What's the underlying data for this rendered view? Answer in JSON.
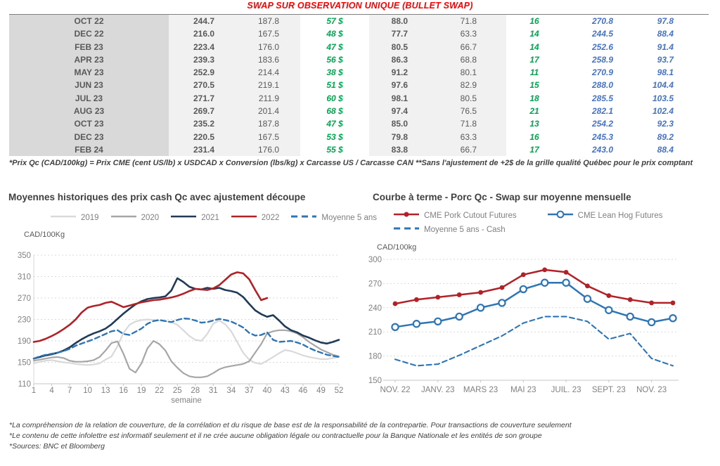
{
  "page": {
    "title": "SWAP SUR OBSERVATION UNIQUE (BULLET SWAP)",
    "table_footnote": "*Prix Qc (CAD/100kg) = Prix CME (cent US/lb) x USDCAD x Conversion (lbs/kg) x Carcasse US / Carcasse CAN **Sans l'ajustement de +2$ de la grille qualité Québec pour le prix comptant",
    "footnotes": [
      "*La compréhension de la relation de couverture, de la corrélation et du risque de base est de la responsabilité de la contrepartie. Pour transactions de couverture seulement",
      "*Le contenu de cette infolettre est informatif seulement et il ne crée aucune obligation légale ou contractuelle pour la Banque Nationale et les entités de son groupe",
      "*Sources: BNC et Bloomberg"
    ]
  },
  "colors": {
    "title_red": "#ff0000",
    "table_green": "#00a550",
    "table_blue": "#4472c4",
    "gray_2019": "#d9d9d9",
    "gray_2020": "#a6a6a6",
    "navy_2021": "#1f3b57",
    "red_2022": "#b02228",
    "blue_avg": "#2e75b6"
  },
  "table": {
    "rows": [
      [
        "OCT 22",
        "244.7",
        "187.8",
        "57 $",
        "88.0",
        "71.8",
        "16",
        "270.8",
        "97.8"
      ],
      [
        "DEC 22",
        "216.0",
        "167.5",
        "48 $",
        "77.7",
        "63.3",
        "14",
        "244.5",
        "88.4"
      ],
      [
        "FEB 23",
        "223.4",
        "176.0",
        "47 $",
        "80.5",
        "66.7",
        "14",
        "252.6",
        "91.4"
      ],
      [
        "APR 23",
        "239.3",
        "183.6",
        "56 $",
        "86.3",
        "68.8",
        "17",
        "258.9",
        "93.7"
      ],
      [
        "MAY 23",
        "252.9",
        "214.4",
        "38 $",
        "91.2",
        "80.1",
        "11",
        "270.9",
        "98.1"
      ],
      [
        "JUN 23",
        "270.5",
        "219.1",
        "51 $",
        "97.6",
        "82.9",
        "15",
        "288.0",
        "104.4"
      ],
      [
        "JUL 23",
        "271.7",
        "211.9",
        "60 $",
        "98.1",
        "80.5",
        "18",
        "285.5",
        "103.5"
      ],
      [
        "AUG 23",
        "269.7",
        "201.4",
        "68 $",
        "97.4",
        "76.5",
        "21",
        "282.1",
        "102.4"
      ],
      [
        "OCT 23",
        "235.2",
        "187.8",
        "47 $",
        "85.0",
        "71.8",
        "13",
        "254.2",
        "92.3"
      ],
      [
        "DEC 23",
        "220.5",
        "167.5",
        "53 $",
        "79.8",
        "63.3",
        "16",
        "245.3",
        "89.2"
      ],
      [
        "FEB 24",
        "231.4",
        "176.0",
        "55 $",
        "83.8",
        "66.7",
        "17",
        "243.0",
        "88.4"
      ]
    ]
  },
  "chart_data": [
    {
      "type": "line",
      "title": "Moyennes historiques des prix cash Qc avec ajustement découpe",
      "ylabel": "CAD/100Kg",
      "xlabel": "semaine",
      "ylim": [
        110,
        350
      ],
      "yticks": [
        110,
        150,
        190,
        230,
        270,
        310,
        350
      ],
      "xticks": [
        1,
        4,
        7,
        10,
        13,
        16,
        19,
        22,
        25,
        28,
        31,
        34,
        37,
        40,
        43,
        46,
        49,
        52
      ],
      "x_range": [
        1,
        52
      ],
      "grid": "dashed-horizontal",
      "legend_position": "top",
      "series": [
        {
          "name": "2019",
          "color": "#d9d9d9",
          "style": "solid",
          "values": [
            148,
            151,
            153,
            154,
            152,
            150,
            149,
            147,
            146,
            145,
            146,
            148,
            155,
            161,
            180,
            205,
            220,
            226,
            229,
            230,
            229,
            228,
            227,
            225,
            220,
            210,
            199,
            192,
            190,
            203,
            222,
            228,
            221,
            208,
            188,
            168,
            155,
            149,
            147,
            153,
            160,
            167,
            173,
            171,
            167,
            163,
            160,
            158,
            156,
            156,
            158,
            160
          ]
        },
        {
          "name": "2020",
          "color": "#a6a6a6",
          "style": "solid",
          "values": [
            153,
            155,
            157,
            159,
            160,
            158,
            153,
            151,
            151,
            152,
            154,
            160,
            172,
            186,
            189,
            166,
            138,
            131,
            148,
            176,
            190,
            184,
            172,
            152,
            140,
            130,
            124,
            122,
            122,
            124,
            130,
            137,
            141,
            143,
            145,
            147,
            152,
            168,
            184,
            204,
            208,
            210,
            210,
            208,
            204,
            197,
            188,
            181,
            174,
            169,
            164,
            161
          ]
        },
        {
          "name": "2021",
          "color": "#1f3b57",
          "style": "solid",
          "values": [
            157,
            160,
            163,
            165,
            168,
            172,
            178,
            186,
            193,
            199,
            204,
            208,
            213,
            221,
            231,
            241,
            250,
            258,
            264,
            268,
            270,
            271,
            273,
            284,
            307,
            300,
            291,
            287,
            286,
            289,
            287,
            289,
            285,
            283,
            280,
            272,
            259,
            247,
            240,
            235,
            238,
            228,
            217,
            210,
            206,
            200,
            196,
            191,
            187,
            185,
            188,
            192
          ]
        },
        {
          "name": "2022",
          "color": "#b02228",
          "style": "solid",
          "values": [
            188,
            190,
            194,
            199,
            205,
            212,
            220,
            230,
            243,
            252,
            255,
            257,
            261,
            263,
            258,
            253,
            256,
            259,
            262,
            264,
            266,
            267,
            269,
            271,
            274,
            278,
            283,
            287,
            286,
            285,
            288,
            294,
            304,
            314,
            318,
            316,
            305,
            285,
            266,
            270,
            null,
            null,
            null,
            null,
            null,
            null,
            null,
            null,
            null,
            null,
            null,
            null
          ]
        },
        {
          "name": "Moyenne 5 ans",
          "color": "#2e75b6",
          "style": "dashed",
          "values": [
            157,
            161,
            164,
            166,
            168,
            171,
            175,
            181,
            185,
            189,
            193,
            198,
            203,
            208,
            210,
            203,
            201,
            207,
            213,
            222,
            227,
            229,
            227,
            225,
            229,
            232,
            231,
            228,
            224,
            225,
            228,
            231,
            229,
            226,
            221,
            215,
            205,
            200,
            201,
            206,
            192,
            188,
            189,
            190,
            187,
            183,
            177,
            172,
            168,
            164,
            162,
            160
          ]
        }
      ]
    },
    {
      "type": "line",
      "title": "Courbe à terme - Porc Qc - Swap sur moyenne mensuelle",
      "ylabel": "CAD/100kg",
      "ylim": [
        150,
        300
      ],
      "yticks": [
        150,
        180,
        210,
        240,
        270,
        300
      ],
      "xticklabels": [
        "NOV. 22",
        "JANV. 23",
        "MARS 23",
        "MAI 23",
        "JUIL. 23",
        "SEPT. 23",
        "NOV. 23"
      ],
      "xtickindices": [
        0,
        2,
        4,
        6,
        8,
        10,
        12
      ],
      "grid": "dashed-horizontal",
      "legend_position": "top",
      "series": [
        {
          "name": "CME Pork Cutout Futures",
          "color": "#b02228",
          "style": "solid",
          "marker": "dot",
          "values": [
            245,
            250,
            253,
            256,
            259,
            265,
            281,
            287,
            284,
            267,
            255,
            250,
            246,
            246
          ]
        },
        {
          "name": "CME Lean Hog Futures",
          "color": "#2e75b6",
          "style": "solid",
          "marker": "circle",
          "values": [
            216,
            220,
            223,
            229,
            240,
            246,
            263,
            271,
            271,
            251,
            237,
            229,
            222,
            227
          ]
        },
        {
          "name": "Moyenne 5 ans - Cash",
          "color": "#2e75b6",
          "style": "dashed",
          "values": [
            176,
            168,
            170,
            181,
            193,
            205,
            221,
            229,
            229,
            223,
            201,
            208,
            177,
            168
          ]
        }
      ]
    }
  ]
}
